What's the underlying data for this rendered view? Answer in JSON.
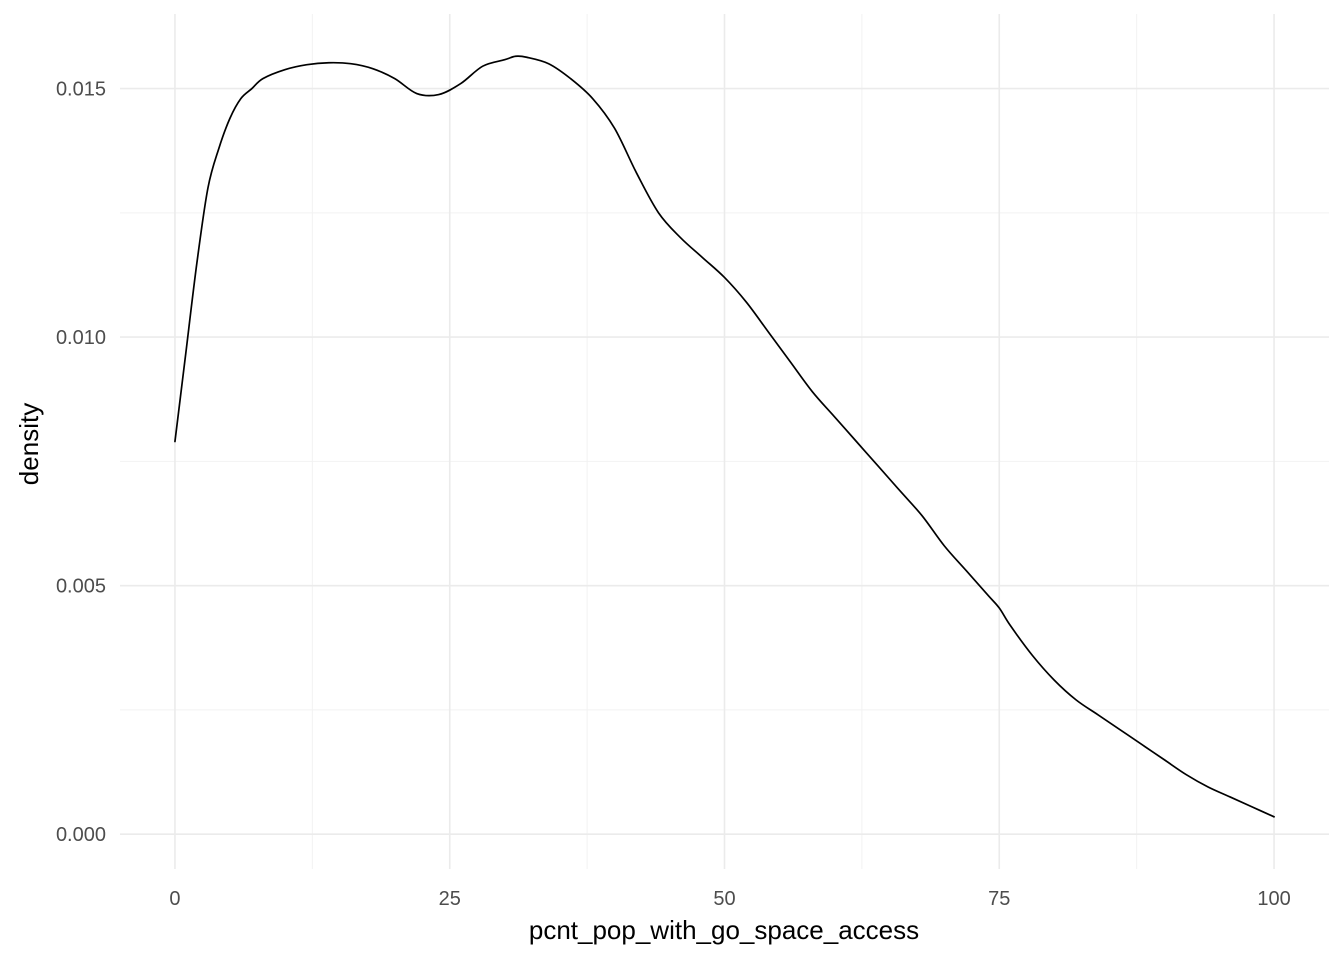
{
  "chart_data": {
    "type": "line",
    "title": "",
    "xlabel": "pcnt_pop_with_go_space_access",
    "ylabel": "density",
    "xlim": [
      -5,
      105
    ],
    "ylim": [
      -0.0007,
      0.0165
    ],
    "x_ticks": [
      0,
      25,
      50,
      75,
      100
    ],
    "x_tick_labels": [
      "0",
      "25",
      "50",
      "75",
      "100"
    ],
    "y_ticks": [
      0,
      0.005,
      0.01,
      0.015
    ],
    "y_tick_labels": [
      "0.000",
      "0.005",
      "0.010",
      "0.015"
    ],
    "grid": true,
    "legend": "none",
    "line_color": "#000000",
    "series": [
      {
        "x": [
          0,
          0.5,
          1,
          2,
          3,
          4,
          5,
          6,
          7,
          8,
          10,
          12,
          14,
          16,
          18,
          20,
          22,
          24,
          26,
          28,
          30,
          31,
          32,
          34,
          36,
          38,
          40,
          42,
          44,
          46,
          48,
          50,
          52,
          54,
          56,
          58,
          60,
          62,
          64,
          66,
          68,
          70,
          72,
          74,
          75,
          76,
          78,
          80,
          82,
          84,
          86,
          88,
          90,
          92,
          94,
          96,
          98,
          100
        ],
        "y": [
          0.0079,
          0.0088,
          0.0097,
          0.0115,
          0.013,
          0.0138,
          0.0144,
          0.0148,
          0.015,
          0.0152,
          0.01538,
          0.01548,
          0.01552,
          0.0155,
          0.0154,
          0.0152,
          0.0149,
          0.01488,
          0.0151,
          0.01545,
          0.01558,
          0.01565,
          0.01563,
          0.0155,
          0.0152,
          0.0148,
          0.0142,
          0.0133,
          0.0125,
          0.012,
          0.0116,
          0.0112,
          0.0107,
          0.0101,
          0.0095,
          0.0089,
          0.0084,
          0.0079,
          0.0074,
          0.0069,
          0.0064,
          0.0058,
          0.0053,
          0.0048,
          0.00455,
          0.0042,
          0.0036,
          0.0031,
          0.0027,
          0.0024,
          0.0021,
          0.0018,
          0.0015,
          0.0012,
          0.00095,
          0.00075,
          0.00055,
          0.00035
        ]
      }
    ]
  }
}
